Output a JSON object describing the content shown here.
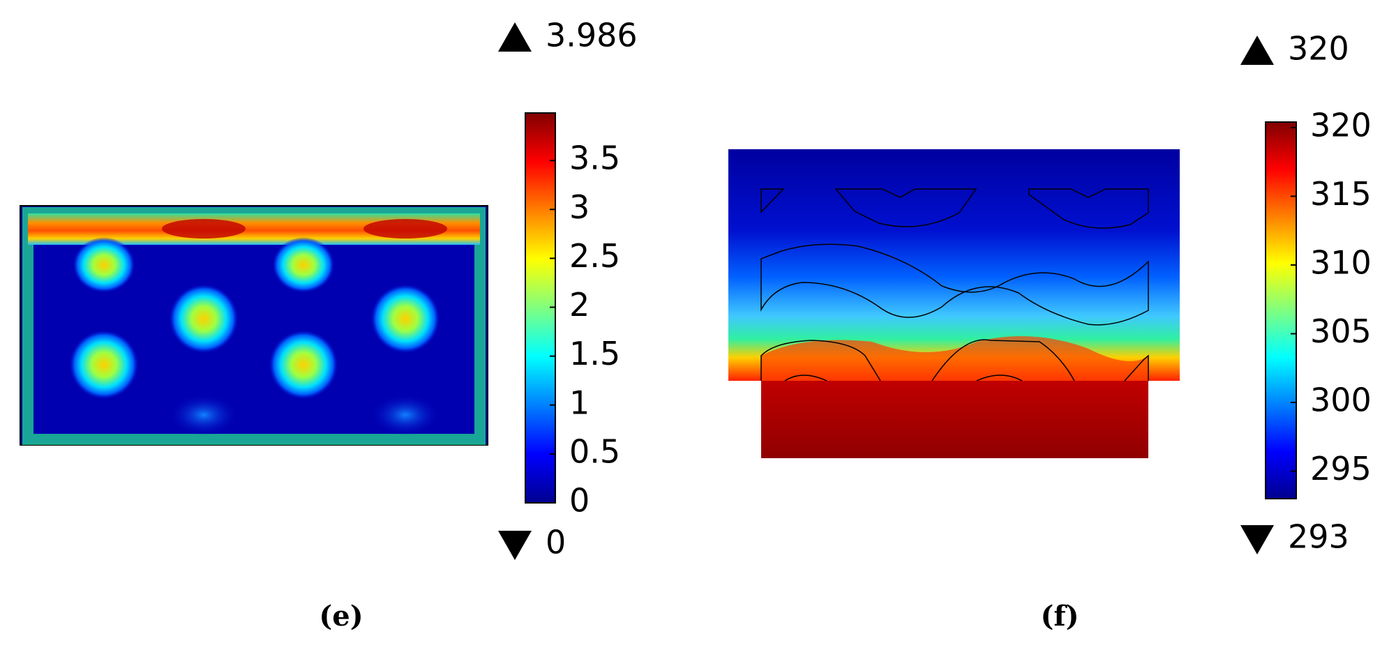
{
  "chart_data": [
    {
      "type": "heatmap",
      "colormap": "jet",
      "caption": "(e)",
      "max": 3.986,
      "min": 0,
      "clim": [
        0,
        3.986
      ],
      "cticks": [
        0,
        0.5,
        1,
        1.5,
        2,
        2.5,
        3,
        3.5
      ]
    },
    {
      "type": "heatmap",
      "colormap": "jet",
      "caption": "(f)",
      "max": 320,
      "min": 293,
      "clim": [
        293,
        320.4
      ],
      "cticks": [
        295,
        300,
        305,
        310,
        315,
        320
      ]
    }
  ]
}
